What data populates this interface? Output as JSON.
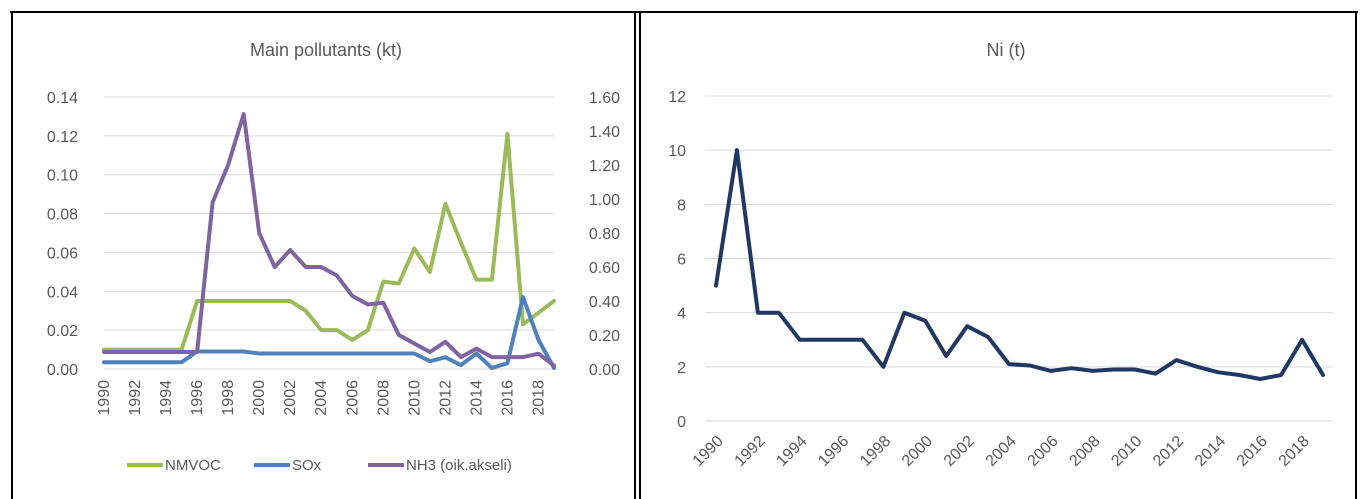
{
  "chart_data": [
    {
      "type": "line",
      "title": "Main pollutants (kt)",
      "x": [
        1990,
        1991,
        1992,
        1993,
        1994,
        1995,
        1996,
        1997,
        1998,
        1999,
        2000,
        2001,
        2002,
        2003,
        2004,
        2005,
        2006,
        2007,
        2008,
        2009,
        2010,
        2011,
        2012,
        2013,
        2014,
        2015,
        2016,
        2017,
        2018,
        2019
      ],
      "x_tick_labels": [
        "1990",
        "1992",
        "1994",
        "1996",
        "1998",
        "2000",
        "2002",
        "2004",
        "2006",
        "2008",
        "2010",
        "2012",
        "2014",
        "2016",
        "2018"
      ],
      "ylim_left": [
        0,
        0.14
      ],
      "ylim_right": [
        0,
        1.6
      ],
      "y_left_ticks": [
        "0.00",
        "0.02",
        "0.04",
        "0.06",
        "0.08",
        "0.10",
        "0.12",
        "0.14"
      ],
      "y_right_ticks": [
        "0.00",
        "0.20",
        "0.40",
        "0.60",
        "0.80",
        "1.00",
        "1.20",
        "1.40",
        "1.60"
      ],
      "grid": true,
      "legend_position": "bottom",
      "series": [
        {
          "name": "NMVOC",
          "axis": "left",
          "color": "#9bbb59",
          "values": [
            0.01,
            0.01,
            0.01,
            0.01,
            0.01,
            0.01,
            0.035,
            0.035,
            0.035,
            0.035,
            0.035,
            0.035,
            0.035,
            0.03,
            0.02,
            0.02,
            0.015,
            0.02,
            0.045,
            0.044,
            0.062,
            0.05,
            0.085,
            0.065,
            0.046,
            0.046,
            0.121,
            0.023,
            0.029,
            0.035
          ]
        },
        {
          "name": "SOx",
          "axis": "left",
          "color": "#4f81bd",
          "values": [
            0.0035,
            0.0035,
            0.0035,
            0.0035,
            0.0035,
            0.0035,
            0.009,
            0.009,
            0.009,
            0.009,
            0.008,
            0.008,
            0.008,
            0.008,
            0.008,
            0.008,
            0.008,
            0.008,
            0.008,
            0.008,
            0.008,
            0.004,
            0.006,
            0.002,
            0.008,
            0.0005,
            0.003,
            0.037,
            0.015,
            0.0005
          ]
        },
        {
          "name": "NH3 (oik.akseli)",
          "axis": "right",
          "color": "#8064a2",
          "values": [
            0.1,
            0.1,
            0.1,
            0.1,
            0.1,
            0.1,
            0.1,
            0.98,
            1.2,
            1.5,
            0.8,
            0.6,
            0.7,
            0.6,
            0.6,
            0.55,
            0.43,
            0.38,
            0.39,
            0.2,
            0.15,
            0.1,
            0.16,
            0.07,
            0.12,
            0.07,
            0.07,
            0.07,
            0.09,
            0.02
          ]
        }
      ]
    },
    {
      "type": "line",
      "title": "Ni (t)",
      "x": [
        1990,
        1991,
        1992,
        1993,
        1994,
        1995,
        1996,
        1997,
        1998,
        1999,
        2000,
        2001,
        2002,
        2003,
        2004,
        2005,
        2006,
        2007,
        2008,
        2009,
        2010,
        2011,
        2012,
        2013,
        2014,
        2015,
        2016,
        2017,
        2018,
        2019
      ],
      "x_tick_labels": [
        "1990",
        "1992",
        "1994",
        "1996",
        "1998",
        "2000",
        "2002",
        "2004",
        "2006",
        "2008",
        "2010",
        "2012",
        "2014",
        "2016",
        "2018"
      ],
      "ylim": [
        0,
        12
      ],
      "y_ticks": [
        "0",
        "2",
        "4",
        "6",
        "8",
        "10",
        "12"
      ],
      "grid": true,
      "series": [
        {
          "color": "#1f3864",
          "values": [
            5.0,
            10.0,
            4.0,
            4.0,
            3.0,
            3.0,
            3.0,
            3.0,
            2.0,
            4.0,
            3.7,
            2.4,
            3.5,
            3.1,
            2.1,
            2.05,
            1.85,
            1.95,
            1.85,
            1.9,
            1.9,
            1.75,
            2.25,
            2.0,
            1.8,
            1.7,
            1.55,
            1.7,
            3.0,
            1.7
          ]
        }
      ]
    }
  ]
}
